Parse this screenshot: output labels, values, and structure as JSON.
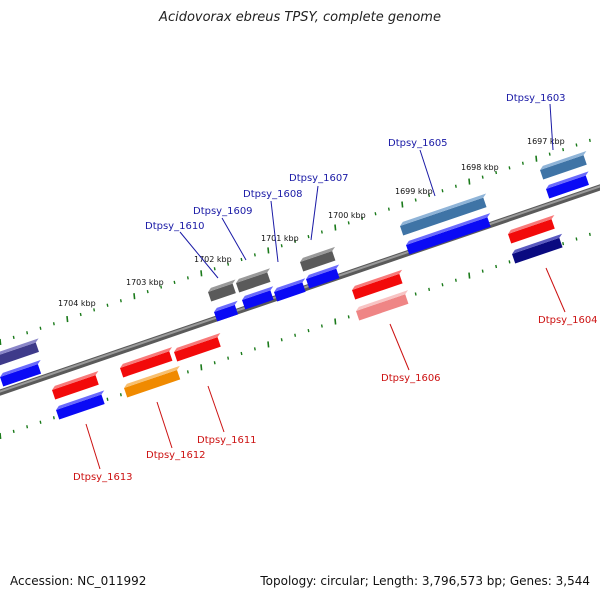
{
  "title": "Acidovorax ebreus TPSY, complete genome",
  "footer": {
    "accession": "Accession: NC_011992",
    "summary": "Topology: circular; Length: 3,796,573 bp; Genes: 3,544"
  },
  "kbp_ticks": [
    "1704 kbp",
    "1703 kbp",
    "1702 kbp",
    "1701 kbp",
    "1700 kbp",
    "1699 kbp",
    "1698 kbp",
    "1697 kbp"
  ],
  "gene_labels_top": [
    "Dtpsy_1610",
    "Dtpsy_1609",
    "Dtpsy_1608",
    "Dtpsy_1607",
    "Dtpsy_1605",
    "Dtpsy_1603"
  ],
  "gene_labels_bottom": [
    "Dtpsy_1613",
    "Dtpsy_1612",
    "Dtpsy_1611",
    "Dtpsy_1606",
    "Dtpsy_1604"
  ],
  "colors": {
    "backbone": "#7a7a7a",
    "blue": "#0a0af5",
    "red": "#f20a0a",
    "gray": "#5a5a5a",
    "steel": "#3f74a6",
    "navy": "#0a0a80",
    "purple": "#3e3a8a",
    "orange": "#f08a00",
    "pink": "#ef8585",
    "tick": "#1a7a1a"
  }
}
